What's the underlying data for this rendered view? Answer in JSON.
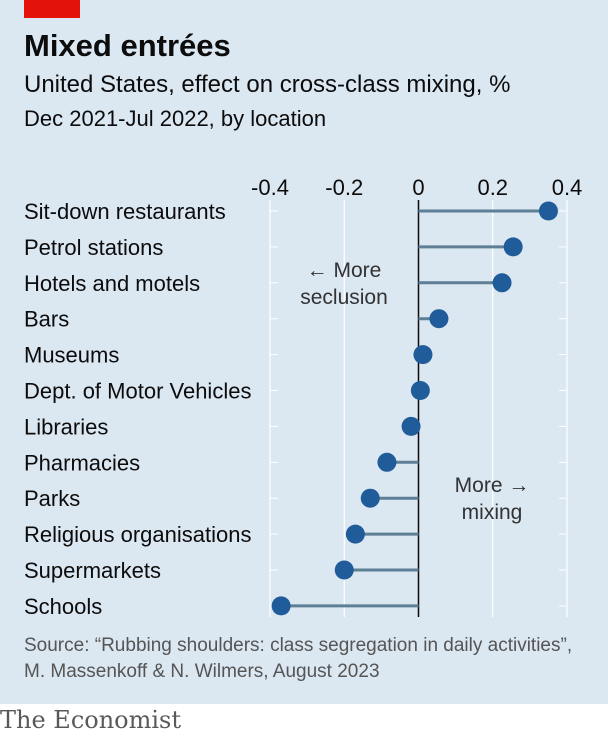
{
  "header": {
    "title": "Mixed entrées",
    "subtitle": "United States, effect on cross-class mixing, %",
    "subsubtitle": "Dec 2021-Jul 2022, by location"
  },
  "chart_data": {
    "type": "dot",
    "xlim": [
      -0.4,
      0.4
    ],
    "xticks": [
      -0.4,
      -0.2,
      0,
      0.2,
      0.4
    ],
    "xtick_labels": [
      "-0.4",
      "-0.2",
      "0",
      "0.2",
      "0.4"
    ],
    "grid": true,
    "categories": [
      "Sit-down restaurants",
      "Petrol stations",
      "Hotels and motels",
      "Bars",
      "Museums",
      "Dept. of Motor Vehicles",
      "Libraries",
      "Pharmacies",
      "Parks",
      "Religious organisations",
      "Supermarkets",
      "Schools"
    ],
    "values": [
      0.35,
      0.255,
      0.225,
      0.055,
      0.012,
      0.005,
      -0.02,
      -0.085,
      -0.13,
      -0.17,
      -0.2,
      -0.37
    ],
    "annotations": {
      "left": [
        "← More",
        "seclusion"
      ],
      "right": [
        "More →",
        "mixing"
      ]
    },
    "colors": {
      "dot": "#1f5c99",
      "stem": "#5e7f95",
      "grid": "#ffffff",
      "zero": "#0c0c0c"
    }
  },
  "source": "Source: “Rubbing shoulders: class segregation in daily activities”, M. Massenkoff & N. Wilmers, August 2023",
  "footer": "The Economist"
}
